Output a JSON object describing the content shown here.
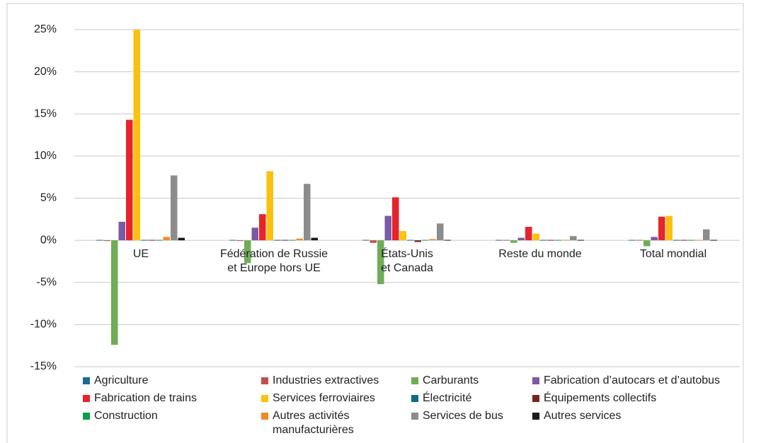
{
  "chart_data": {
    "type": "bar",
    "categories": [
      "UE",
      "Fédération de Russie\net Europe hors UE",
      "États-Unis\net Canada",
      "Reste du monde",
      "Total mondial"
    ],
    "series": [
      {
        "name": "Agriculture",
        "color": "#1d6b8f",
        "values": [
          0.05,
          0.05,
          0.05,
          0.05,
          0.05
        ]
      },
      {
        "name": "Industries extractives",
        "color": "#c0504d",
        "values": [
          -0.05,
          -0.05,
          -0.3,
          0.05,
          0.05
        ]
      },
      {
        "name": "Carburants",
        "color": "#6fad57",
        "values": [
          -12.4,
          -2.7,
          -5.2,
          -0.3,
          -0.7
        ]
      },
      {
        "name": "Fabrication d’autocars et d’autobus",
        "color": "#7b5aa6",
        "values": [
          2.2,
          1.5,
          2.9,
          0.3,
          0.4
        ]
      },
      {
        "name": "Fabrication de trains",
        "color": "#e8232a",
        "values": [
          14.3,
          3.1,
          5.1,
          1.6,
          2.8
        ]
      },
      {
        "name": "Services ferroviaires",
        "color": "#fcc10f",
        "values": [
          25,
          8.2,
          1.1,
          0.8,
          2.9
        ]
      },
      {
        "name": "Électricité",
        "color": "#0f6a8a",
        "values": [
          0.05,
          0.05,
          0.05,
          0.05,
          0.05
        ]
      },
      {
        "name": "Équipements collectifs",
        "color": "#7a2323",
        "values": [
          0.05,
          0.05,
          -0.2,
          0.05,
          0.05
        ]
      },
      {
        "name": "Construction",
        "color": "#0a9f4c",
        "values": [
          0.05,
          0.05,
          0.05,
          0.05,
          0.05
        ]
      },
      {
        "name": "Autres activités manufacturières",
        "color": "#f08a2a",
        "values": [
          0.4,
          0.2,
          0.15,
          0.05,
          0.05
        ]
      },
      {
        "name": "Services de bus",
        "color": "#8c8c8c",
        "values": [
          7.7,
          6.7,
          2.0,
          0.5,
          1.3
        ]
      },
      {
        "name": "Autres services",
        "color": "#1a1a1a",
        "values": [
          0.3,
          0.3,
          0.05,
          0.05,
          0.05
        ]
      }
    ],
    "ylim": [
      -15,
      25
    ],
    "yticks": [
      {
        "value": -15,
        "label": "-15%"
      },
      {
        "value": -10,
        "label": "-10%"
      },
      {
        "value": -5,
        "label": "-5%"
      },
      {
        "value": 0,
        "label": "0%"
      },
      {
        "value": 5,
        "label": "5%"
      },
      {
        "value": 10,
        "label": "10%"
      },
      {
        "value": 15,
        "label": "15%"
      },
      {
        "value": 20,
        "label": "20%"
      },
      {
        "value": 25,
        "label": "25%"
      }
    ],
    "grid": true
  }
}
